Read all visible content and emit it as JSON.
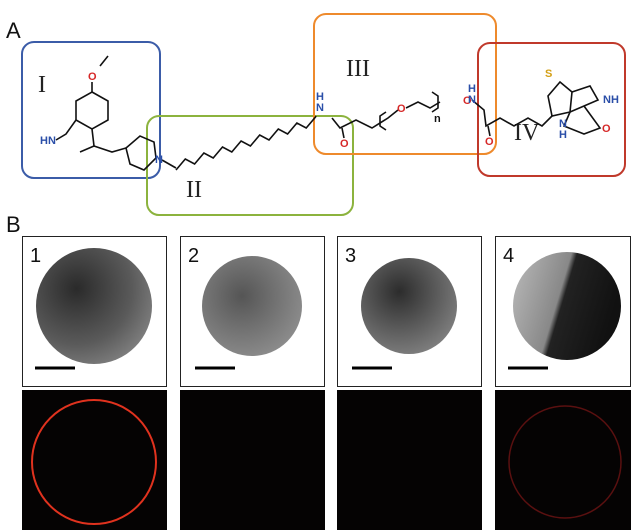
{
  "panel_a": {
    "label": "A",
    "regions": [
      "I",
      "II",
      "III",
      "IV"
    ],
    "atoms": [
      "O",
      "HN",
      "N",
      "H",
      "N",
      "O",
      "O",
      "n",
      "O",
      "H",
      "N",
      "O",
      "S",
      "NH",
      "H",
      "N",
      "O"
    ]
  },
  "panel_b": {
    "label": "B",
    "panels": [
      "1",
      "2",
      "3",
      "4"
    ]
  }
}
